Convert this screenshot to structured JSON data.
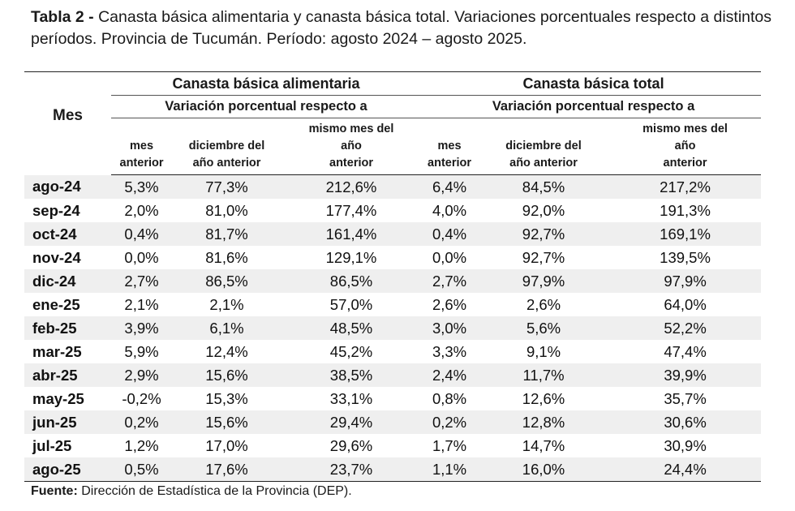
{
  "caption": {
    "label": "Tabla 2 - ",
    "text": "Canasta básica alimentaria y canasta básica total. Variaciones porcentuales respecto a distintos períodos. Provincia de Tucumán. Período: agosto 2024 – agosto 2025."
  },
  "header": {
    "mes": "Mes",
    "group_cba": "Canasta básica alimentaria",
    "group_cbt": "Canasta básica total",
    "sub_label": "Variación porcentual respecto a",
    "col_mes_anterior": [
      "mes",
      "anterior"
    ],
    "col_diciembre": [
      "diciembre del",
      "año anterior"
    ],
    "col_mismo_mes": [
      "mismo mes del",
      "año",
      "anterior"
    ]
  },
  "rows": [
    {
      "mes": "ago-24",
      "cba": [
        "5,3%",
        "77,3%",
        "212,6%"
      ],
      "cbt": [
        "6,4%",
        "84,5%",
        "217,2%"
      ]
    },
    {
      "mes": "sep-24",
      "cba": [
        "2,0%",
        "81,0%",
        "177,4%"
      ],
      "cbt": [
        "4,0%",
        "92,0%",
        "191,3%"
      ]
    },
    {
      "mes": "oct-24",
      "cba": [
        "0,4%",
        "81,7%",
        "161,4%"
      ],
      "cbt": [
        "0,4%",
        "92,7%",
        "169,1%"
      ]
    },
    {
      "mes": "nov-24",
      "cba": [
        "0,0%",
        "81,6%",
        "129,1%"
      ],
      "cbt": [
        "0,0%",
        "92,7%",
        "139,5%"
      ]
    },
    {
      "mes": "dic-24",
      "cba": [
        "2,7%",
        "86,5%",
        "86,5%"
      ],
      "cbt": [
        "2,7%",
        "97,9%",
        "97,9%"
      ]
    },
    {
      "mes": "ene-25",
      "cba": [
        "2,1%",
        "2,1%",
        "57,0%"
      ],
      "cbt": [
        "2,6%",
        "2,6%",
        "64,0%"
      ]
    },
    {
      "mes": "feb-25",
      "cba": [
        "3,9%",
        "6,1%",
        "48,5%"
      ],
      "cbt": [
        "3,0%",
        "5,6%",
        "52,2%"
      ]
    },
    {
      "mes": "mar-25",
      "cba": [
        "5,9%",
        "12,4%",
        "45,2%"
      ],
      "cbt": [
        "3,3%",
        "9,1%",
        "47,4%"
      ]
    },
    {
      "mes": "abr-25",
      "cba": [
        "2,9%",
        "15,6%",
        "38,5%"
      ],
      "cbt": [
        "2,4%",
        "11,7%",
        "39,9%"
      ]
    },
    {
      "mes": "may-25",
      "cba": [
        "-0,2%",
        "15,3%",
        "33,1%"
      ],
      "cbt": [
        "0,8%",
        "12,6%",
        "35,7%"
      ]
    },
    {
      "mes": "jun-25",
      "cba": [
        "0,2%",
        "15,6%",
        "29,4%"
      ],
      "cbt": [
        "0,2%",
        "12,8%",
        "30,6%"
      ]
    },
    {
      "mes": "jul-25",
      "cba": [
        "1,2%",
        "17,0%",
        "29,6%"
      ],
      "cbt": [
        "1,7%",
        "14,7%",
        "30,9%"
      ]
    },
    {
      "mes": "ago-25",
      "cba": [
        "0,5%",
        "17,6%",
        "23,7%"
      ],
      "cbt": [
        "1,1%",
        "16,0%",
        "24,4%"
      ]
    }
  ],
  "source": {
    "label": "Fuente:",
    "text": " Dirección de Estadística de la Provincia (DEP)."
  }
}
